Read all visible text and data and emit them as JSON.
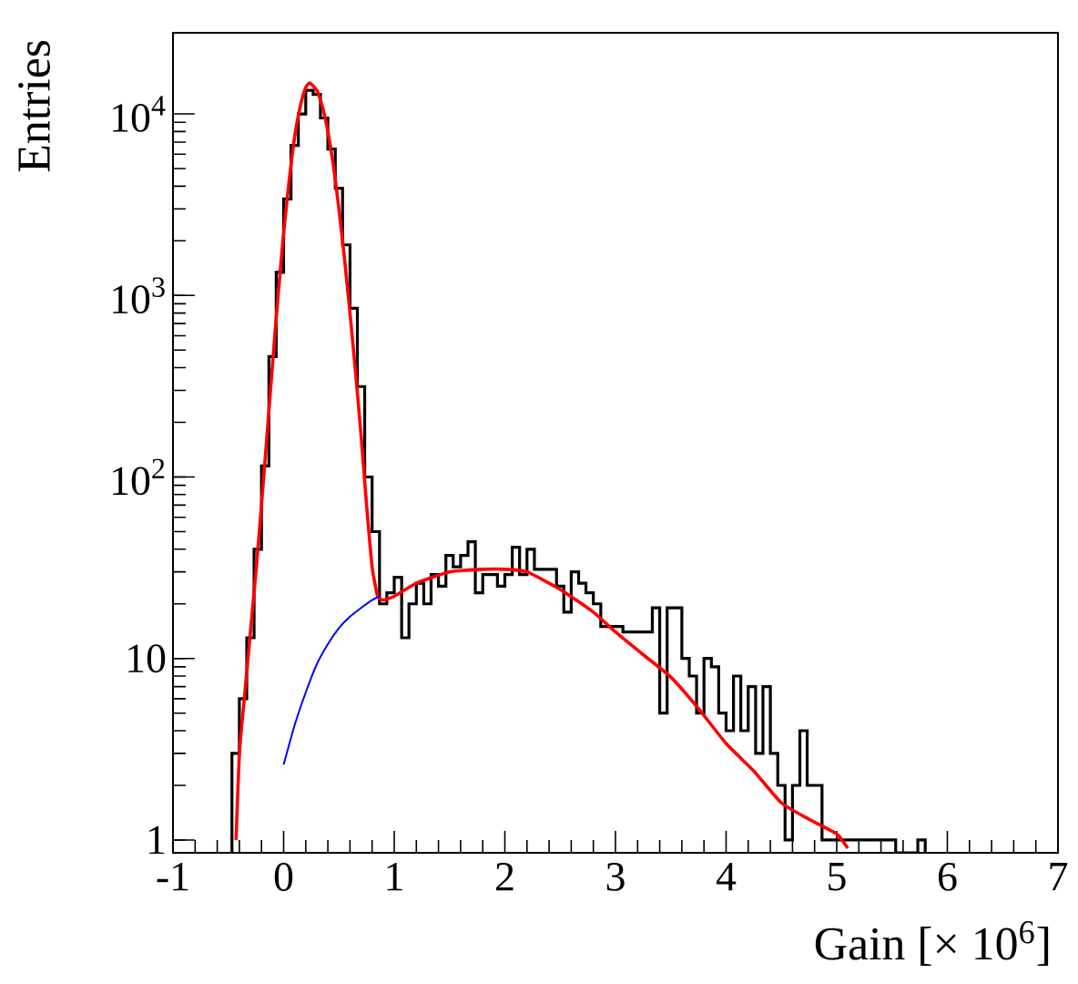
{
  "chart_data": {
    "type": "histogram",
    "xlabel": "Gain [× 10$^{6}$]",
    "ylabel": "Entries",
    "log": "y",
    "xlim": [
      -1,
      7
    ],
    "ylim": [
      0.85,
      28000
    ],
    "xticks": [
      -1,
      0,
      1,
      2,
      3,
      4,
      5,
      6,
      7
    ],
    "yticks": [
      {
        "value": 1,
        "label": "1"
      },
      {
        "value": 10,
        "label": "10"
      },
      {
        "value": 100,
        "label": "10$^{2}$"
      },
      {
        "value": 1000,
        "label": "10$^{3}$"
      },
      {
        "value": 10000,
        "label": "10$^{4}$"
      }
    ],
    "series": [
      {
        "type": "histogram",
        "color": "#000000",
        "bins": [
          -0.467,
          -0.4,
          -0.333,
          -0.267,
          -0.2,
          -0.133,
          -0.067,
          0,
          0.067,
          0.133,
          0.2,
          0.267,
          0.333,
          0.4,
          0.467,
          0.533,
          0.6,
          0.667,
          0.733,
          0.8,
          0.867,
          0.933,
          1,
          1.067,
          1.133,
          1.2,
          1.267,
          1.333,
          1.4,
          1.467,
          1.533,
          1.6,
          1.667,
          1.733,
          1.8,
          1.867,
          1.933,
          2,
          2.067,
          2.133,
          2.2,
          2.267,
          2.333,
          2.4,
          2.467,
          2.533,
          2.6,
          2.667,
          2.733,
          2.8,
          2.867,
          2.933,
          3,
          3.067,
          3.133,
          3.2,
          3.267,
          3.333,
          3.4,
          3.467,
          3.533,
          3.6,
          3.667,
          3.733,
          3.8,
          3.867,
          3.933,
          4,
          4.067,
          4.133,
          4.2,
          4.267,
          4.333,
          4.4,
          4.467,
          4.533,
          4.6,
          4.667,
          4.733,
          4.8,
          4.867,
          4.933,
          5,
          5.067,
          5.133,
          5.2,
          5.267,
          5.333,
          5.4,
          5.467,
          5.533,
          5.6,
          5.667,
          5.733,
          5.8
        ],
        "values": [
          3,
          6,
          13,
          40,
          115,
          460,
          1340,
          3400,
          6700,
          10000,
          13500,
          12800,
          9500,
          6400,
          3900,
          1900,
          850,
          315,
          100,
          50,
          20,
          23,
          28,
          13,
          20,
          26,
          20,
          29,
          25,
          37,
          32,
          37,
          44,
          23,
          29,
          29,
          25,
          29,
          41,
          29,
          40,
          31,
          31,
          31,
          25,
          18,
          30,
          26,
          23,
          20,
          15,
          15,
          15,
          14,
          14,
          14,
          14,
          19,
          5,
          19,
          19,
          10,
          8,
          5,
          10,
          9,
          5,
          4,
          8,
          4,
          7,
          3,
          7,
          3,
          2,
          1,
          2,
          4,
          2,
          2,
          1,
          1,
          1,
          1,
          1,
          1,
          1,
          1,
          1,
          1,
          null,
          null,
          null,
          1
        ]
      },
      {
        "type": "line",
        "color": "#ff0000",
        "x": [
          -0.43,
          -0.4,
          -0.35,
          -0.3,
          -0.25,
          -0.2,
          -0.15,
          -0.1,
          -0.05,
          0,
          0.05,
          0.1,
          0.15,
          0.2,
          0.237,
          0.3,
          0.35,
          0.4,
          0.45,
          0.5,
          0.55,
          0.6,
          0.65,
          0.7,
          0.75,
          0.8,
          0.85,
          0.9,
          1,
          1.2,
          1.5,
          1.8,
          2,
          2.2,
          2.5,
          2.8,
          3,
          3.25,
          3.5,
          3.75,
          4,
          4.25,
          4.5,
          4.75,
          5,
          5.1
        ],
        "values": [
          1,
          3,
          6.5,
          14,
          30,
          70,
          170,
          420,
          1000,
          2200,
          4300,
          7500,
          11000,
          14000,
          14800,
          13500,
          11000,
          8000,
          5200,
          3000,
          1600,
          800,
          380,
          170,
          70,
          32,
          22,
          21,
          22,
          26,
          30,
          31,
          31,
          30,
          24,
          18,
          14,
          10.5,
          7.9,
          5.3,
          3.4,
          2.4,
          1.6,
          1.3,
          1.08,
          0.9
        ]
      },
      {
        "type": "line",
        "color": "#0000ff",
        "x": [
          0,
          0.1,
          0.2,
          0.3,
          0.4,
          0.5,
          0.6,
          0.7,
          0.8,
          0.87
        ],
        "values": [
          2.6,
          4.3,
          6.5,
          9.3,
          12,
          14.7,
          17,
          19,
          21,
          22
        ]
      }
    ]
  }
}
